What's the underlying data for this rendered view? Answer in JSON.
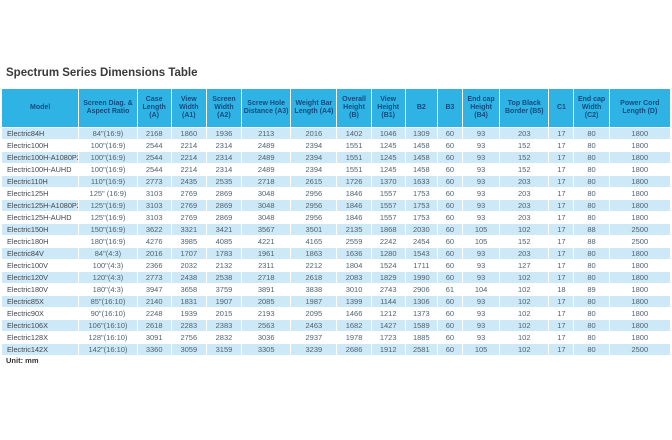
{
  "page": {
    "title": "Spectrum Series Dimensions Table",
    "unit_note": "Unit: mm"
  },
  "colors": {
    "header_bg": "#2EB3E4",
    "header_text": "#16497E",
    "stripe_bg": "#CDE8F7",
    "row_bg": "#FFFFFF",
    "number_text": "#51636F",
    "model_text": "#40464D",
    "title_text": "#3A3A3A"
  },
  "table": {
    "columns": [
      "Model",
      "Screen Diag. & Aspect Ratio",
      "Case Length (A)",
      "View Width (A1)",
      "Screen Width (A2)",
      "Screw Hole Distance (A3)",
      "Weight Bar Length (A4)",
      "Overall Height (B)",
      "View Height (B1)",
      "B2",
      "B3",
      "End cap Height (B4)",
      "Top Black Border (B5)",
      "C1",
      "End cap Width (C2)",
      "Power Cord Length (D)"
    ],
    "rows": [
      [
        "Electric84H",
        "84\"(16:9)",
        2168,
        1860,
        1936,
        2113,
        2016,
        1402,
        1046,
        1309,
        60,
        93,
        203,
        17,
        80,
        1800
      ],
      [
        "Electric100H",
        "100\"(16:9)",
        2544,
        2214,
        2314,
        2489,
        2394,
        1551,
        1245,
        1458,
        60,
        93,
        152,
        17,
        80,
        1800
      ],
      [
        "Electric100H-A1080P2",
        "100\"(16:9)",
        2544,
        2214,
        2314,
        2489,
        2394,
        1551,
        1245,
        1458,
        60,
        93,
        152,
        17,
        80,
        1800
      ],
      [
        "Electric100H-AUHD",
        "100\"(16:9)",
        2544,
        2214,
        2314,
        2489,
        2394,
        1551,
        1245,
        1458,
        60,
        93,
        152,
        17,
        80,
        1800
      ],
      [
        "Electric110H",
        "110\"(16:9)",
        2773,
        2435,
        2535,
        2718,
        2615,
        1726,
        1370,
        1633,
        60,
        93,
        203,
        17,
        80,
        1800
      ],
      [
        "Electric125H",
        "125\" (16:9)",
        3103,
        2769,
        2869,
        3048,
        2956,
        1846,
        1557,
        1753,
        60,
        93,
        203,
        17,
        80,
        1800
      ],
      [
        "Electric125H-A1080P2",
        "125\"(16:9)",
        3103,
        2769,
        2869,
        3048,
        2956,
        1846,
        1557,
        1753,
        60,
        93,
        203,
        17,
        80,
        1800
      ],
      [
        "Electric125H-AUHD",
        "125\"(16:9)",
        3103,
        2769,
        2869,
        3048,
        2956,
        1846,
        1557,
        1753,
        60,
        93,
        203,
        17,
        80,
        1800
      ],
      [
        "Electric150H",
        "150\"(16:9)",
        3622,
        3321,
        3421,
        3567,
        3501,
        2135,
        1868,
        2030,
        60,
        105,
        102,
        17,
        88,
        2500
      ],
      [
        "Electric180H",
        "180\"(16:9)",
        4276,
        3985,
        4085,
        4221,
        4165,
        2559,
        2242,
        2454,
        60,
        105,
        152,
        17,
        88,
        2500
      ],
      [
        "Electric84V",
        "84\"(4:3)",
        2016,
        1707,
        1783,
        1961,
        1863,
        1636,
        1280,
        1543,
        60,
        93,
        203,
        17,
        80,
        1800
      ],
      [
        "Electric100V",
        "100\"(4:3)",
        2366,
        2032,
        2132,
        2311,
        2212,
        1804,
        1524,
        1711,
        60,
        93,
        127,
        17,
        80,
        1800
      ],
      [
        "Electric120V",
        "120\"(4:3)",
        2773,
        2438,
        2538,
        2718,
        2618,
        2083,
        1829,
        1990,
        60,
        93,
        102,
        17,
        80,
        1800
      ],
      [
        "Electric180V",
        "180\"(4:3)",
        3947,
        3658,
        3759,
        3891,
        3838,
        3010,
        2743,
        2906,
        61,
        104,
        102,
        18,
        89,
        1800
      ],
      [
        "Electric85X",
        "85\"(16:10)",
        2140,
        1831,
        1907,
        2085,
        1987,
        1399,
        1144,
        1306,
        60,
        93,
        102,
        17,
        80,
        1800
      ],
      [
        "Electric90X",
        "90\"(16:10)",
        2248,
        1939,
        2015,
        2193,
        2095,
        1466,
        1212,
        1373,
        60,
        93,
        102,
        17,
        80,
        1800
      ],
      [
        "Electric106X",
        "106\"(16:10)",
        2618,
        2283,
        2383,
        2563,
        2463,
        1682,
        1427,
        1589,
        60,
        93,
        102,
        17,
        80,
        1800
      ],
      [
        "Electric128X",
        "128\"(16:10)",
        3091,
        2756,
        2832,
        3036,
        2937,
        1978,
        1723,
        1885,
        60,
        93,
        102,
        17,
        80,
        1800
      ],
      [
        "Electric142X",
        "142\"(16:10)",
        3360,
        3059,
        3159,
        3305,
        3239,
        2686,
        1912,
        2581,
        60,
        105,
        102,
        17,
        80,
        2500
      ]
    ]
  }
}
